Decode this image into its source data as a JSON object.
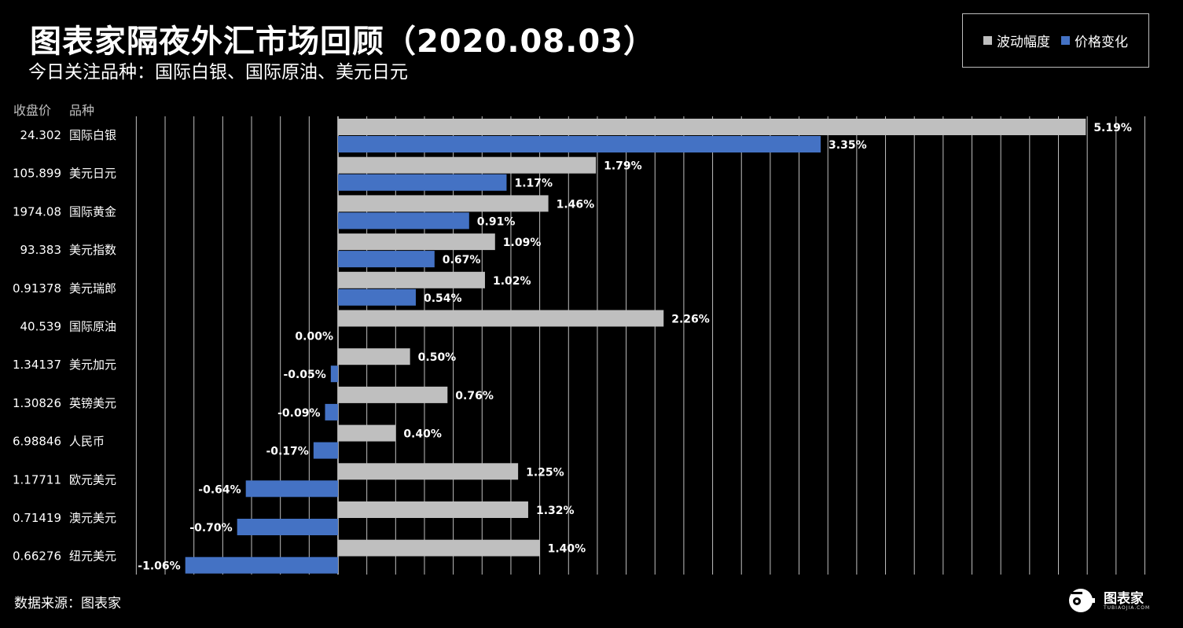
{
  "title": "图表家隔夜外汇市场回顾（2020.08.03）",
  "subtitle": "今日关注品种：国际白银、国际原油、美元日元",
  "legend": {
    "series1": "波动幅度",
    "series2": "价格变化"
  },
  "headers": {
    "price": "收盘价",
    "variety": "品种"
  },
  "footer": "数据来源：图表家",
  "brand": {
    "name": "图表家",
    "sub": "TUBIAOJIA.COM"
  },
  "colors": {
    "volatility": "#bfbfbf",
    "change": "#4472c4",
    "background": "#000000",
    "gridline": "#bfbfbf"
  },
  "chart_data": {
    "type": "bar",
    "orientation": "horizontal",
    "categories": [
      "国际白银",
      "美元日元",
      "国际黄金",
      "美元指数",
      "美元瑞郎",
      "国际原油",
      "美元加元",
      "英镑美元",
      "人民币",
      "欧元美元",
      "澳元美元",
      "纽元美元"
    ],
    "close_prices": [
      "24.302",
      "105.899",
      "1974.08",
      "93.383",
      "0.91378",
      "40.539",
      "1.34137",
      "1.30826",
      "6.98846",
      "1.17711",
      "0.71419",
      "0.66276"
    ],
    "series": [
      {
        "name": "波动幅度",
        "values": [
          5.19,
          1.79,
          1.46,
          1.09,
          1.02,
          2.26,
          0.5,
          0.76,
          0.4,
          1.25,
          1.32,
          1.4
        ],
        "labels": [
          "5.19%",
          "1.79%",
          "1.46%",
          "1.09%",
          "1.02%",
          "2.26%",
          "0.50%",
          "0.76%",
          "0.40%",
          "1.25%",
          "1.32%",
          "1.40%"
        ]
      },
      {
        "name": "价格变化",
        "values": [
          3.35,
          1.17,
          0.91,
          0.67,
          0.54,
          0.0,
          -0.05,
          -0.09,
          -0.17,
          -0.64,
          -0.7,
          -1.06
        ],
        "labels": [
          "3.35%",
          "1.17%",
          "0.91%",
          "0.67%",
          "0.54%",
          "0.00%",
          "-0.05%",
          "-0.09%",
          "-0.17%",
          "-0.64%",
          "-0.70%",
          "-1.06%"
        ]
      }
    ],
    "xlim": [
      -1.4,
      5.6
    ],
    "grid": true,
    "legend_position": "top-right"
  }
}
